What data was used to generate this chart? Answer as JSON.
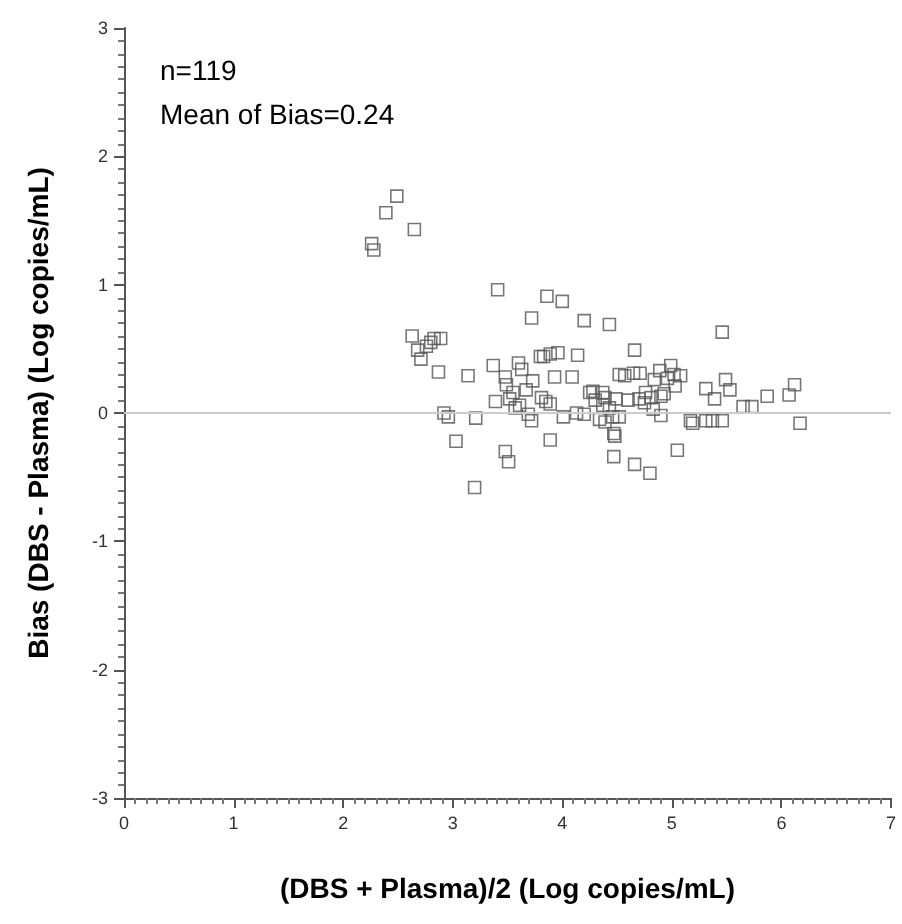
{
  "chart_data": {
    "type": "scatter",
    "xlabel": "(DBS + Plasma)/2 (Log copies/mL)",
    "ylabel": "Bias (DBS - Plasma) (Log copies/mL)",
    "annotations": [
      "n=119",
      "Mean of Bias=0.24"
    ],
    "marker": "square",
    "grid": false,
    "xlim": [
      0,
      7
    ],
    "xticks": [
      0,
      1,
      2,
      3,
      4,
      5,
      6,
      7
    ],
    "ylim": [
      -3,
      3
    ],
    "yticks": [
      -3,
      -2,
      -1,
      0,
      1,
      2,
      3
    ],
    "ref_lines": [
      {
        "axis": "y",
        "value": 0,
        "color": "#cccccc"
      }
    ],
    "series": [
      {
        "color": "#555555",
        "x": [
          2.26,
          2.28,
          2.39,
          2.49,
          2.65,
          3.41,
          3.86,
          4.0,
          3.72,
          4.2,
          4.43,
          5.46,
          2.63,
          2.68,
          2.71,
          2.76,
          2.8,
          2.83,
          2.89,
          2.87,
          3.14,
          3.37,
          3.39,
          3.48,
          3.49,
          3.52,
          3.55,
          3.57,
          3.6,
          3.63,
          3.61,
          3.67,
          3.73,
          3.69,
          3.72,
          3.8,
          3.83,
          3.89,
          3.96,
          3.81,
          3.85,
          3.89,
          3.93,
          4.01,
          4.09,
          4.14,
          4.13,
          4.2,
          4.25,
          4.28,
          4.3,
          4.34,
          4.37,
          4.39,
          4.37,
          4.39,
          4.43,
          4.46,
          4.52,
          4.49,
          4.47,
          4.48,
          4.47,
          4.52,
          4.57,
          4.6,
          4.65,
          4.66,
          4.71,
          4.7,
          4.75,
          4.76,
          4.81,
          4.83,
          4.84,
          4.66,
          4.8,
          4.89,
          4.9,
          4.9,
          4.93,
          4.96,
          4.99,
          5.02,
          5.03,
          5.08,
          5.05,
          5.17,
          5.19,
          5.31,
          5.31,
          5.37,
          5.39,
          5.46,
          5.49,
          5.53,
          5.65,
          5.73,
          5.87,
          6.07,
          6.12,
          6.17,
          2.92,
          2.96,
          3.03,
          3.21,
          3.2,
          3.48,
          3.51,
          3.89
        ],
        "values": [
          1.32,
          1.27,
          1.56,
          1.69,
          1.43,
          0.96,
          0.91,
          0.87,
          0.74,
          0.72,
          0.69,
          0.63,
          0.6,
          0.49,
          0.42,
          0.52,
          0.55,
          0.58,
          0.58,
          0.32,
          0.29,
          0.37,
          0.09,
          0.28,
          0.22,
          0.11,
          0.16,
          0.04,
          0.39,
          0.34,
          0.06,
          0.18,
          0.25,
          -0.01,
          -0.06,
          0.44,
          0.44,
          0.46,
          0.47,
          0.12,
          0.09,
          0.07,
          0.28,
          -0.03,
          0.28,
          0.45,
          0.0,
          -0.01,
          0.16,
          0.17,
          0.1,
          -0.05,
          0.16,
          0.12,
          0.06,
          -0.07,
          0.04,
          -0.03,
          -0.03,
          0.11,
          -0.16,
          -0.18,
          -0.34,
          0.3,
          0.29,
          0.1,
          0.31,
          0.49,
          0.31,
          0.11,
          0.08,
          0.16,
          0.12,
          0.03,
          0.26,
          -0.4,
          -0.47,
          0.33,
          0.13,
          -0.02,
          0.15,
          0.27,
          0.37,
          0.3,
          0.21,
          0.29,
          -0.29,
          -0.06,
          -0.08,
          0.19,
          -0.06,
          -0.06,
          0.11,
          -0.06,
          0.26,
          0.18,
          0.05,
          0.05,
          0.13,
          0.14,
          0.22,
          -0.08,
          0.0,
          -0.03,
          -0.22,
          -0.04,
          -0.58,
          -0.3,
          -0.38,
          -0.21
        ]
      }
    ]
  }
}
